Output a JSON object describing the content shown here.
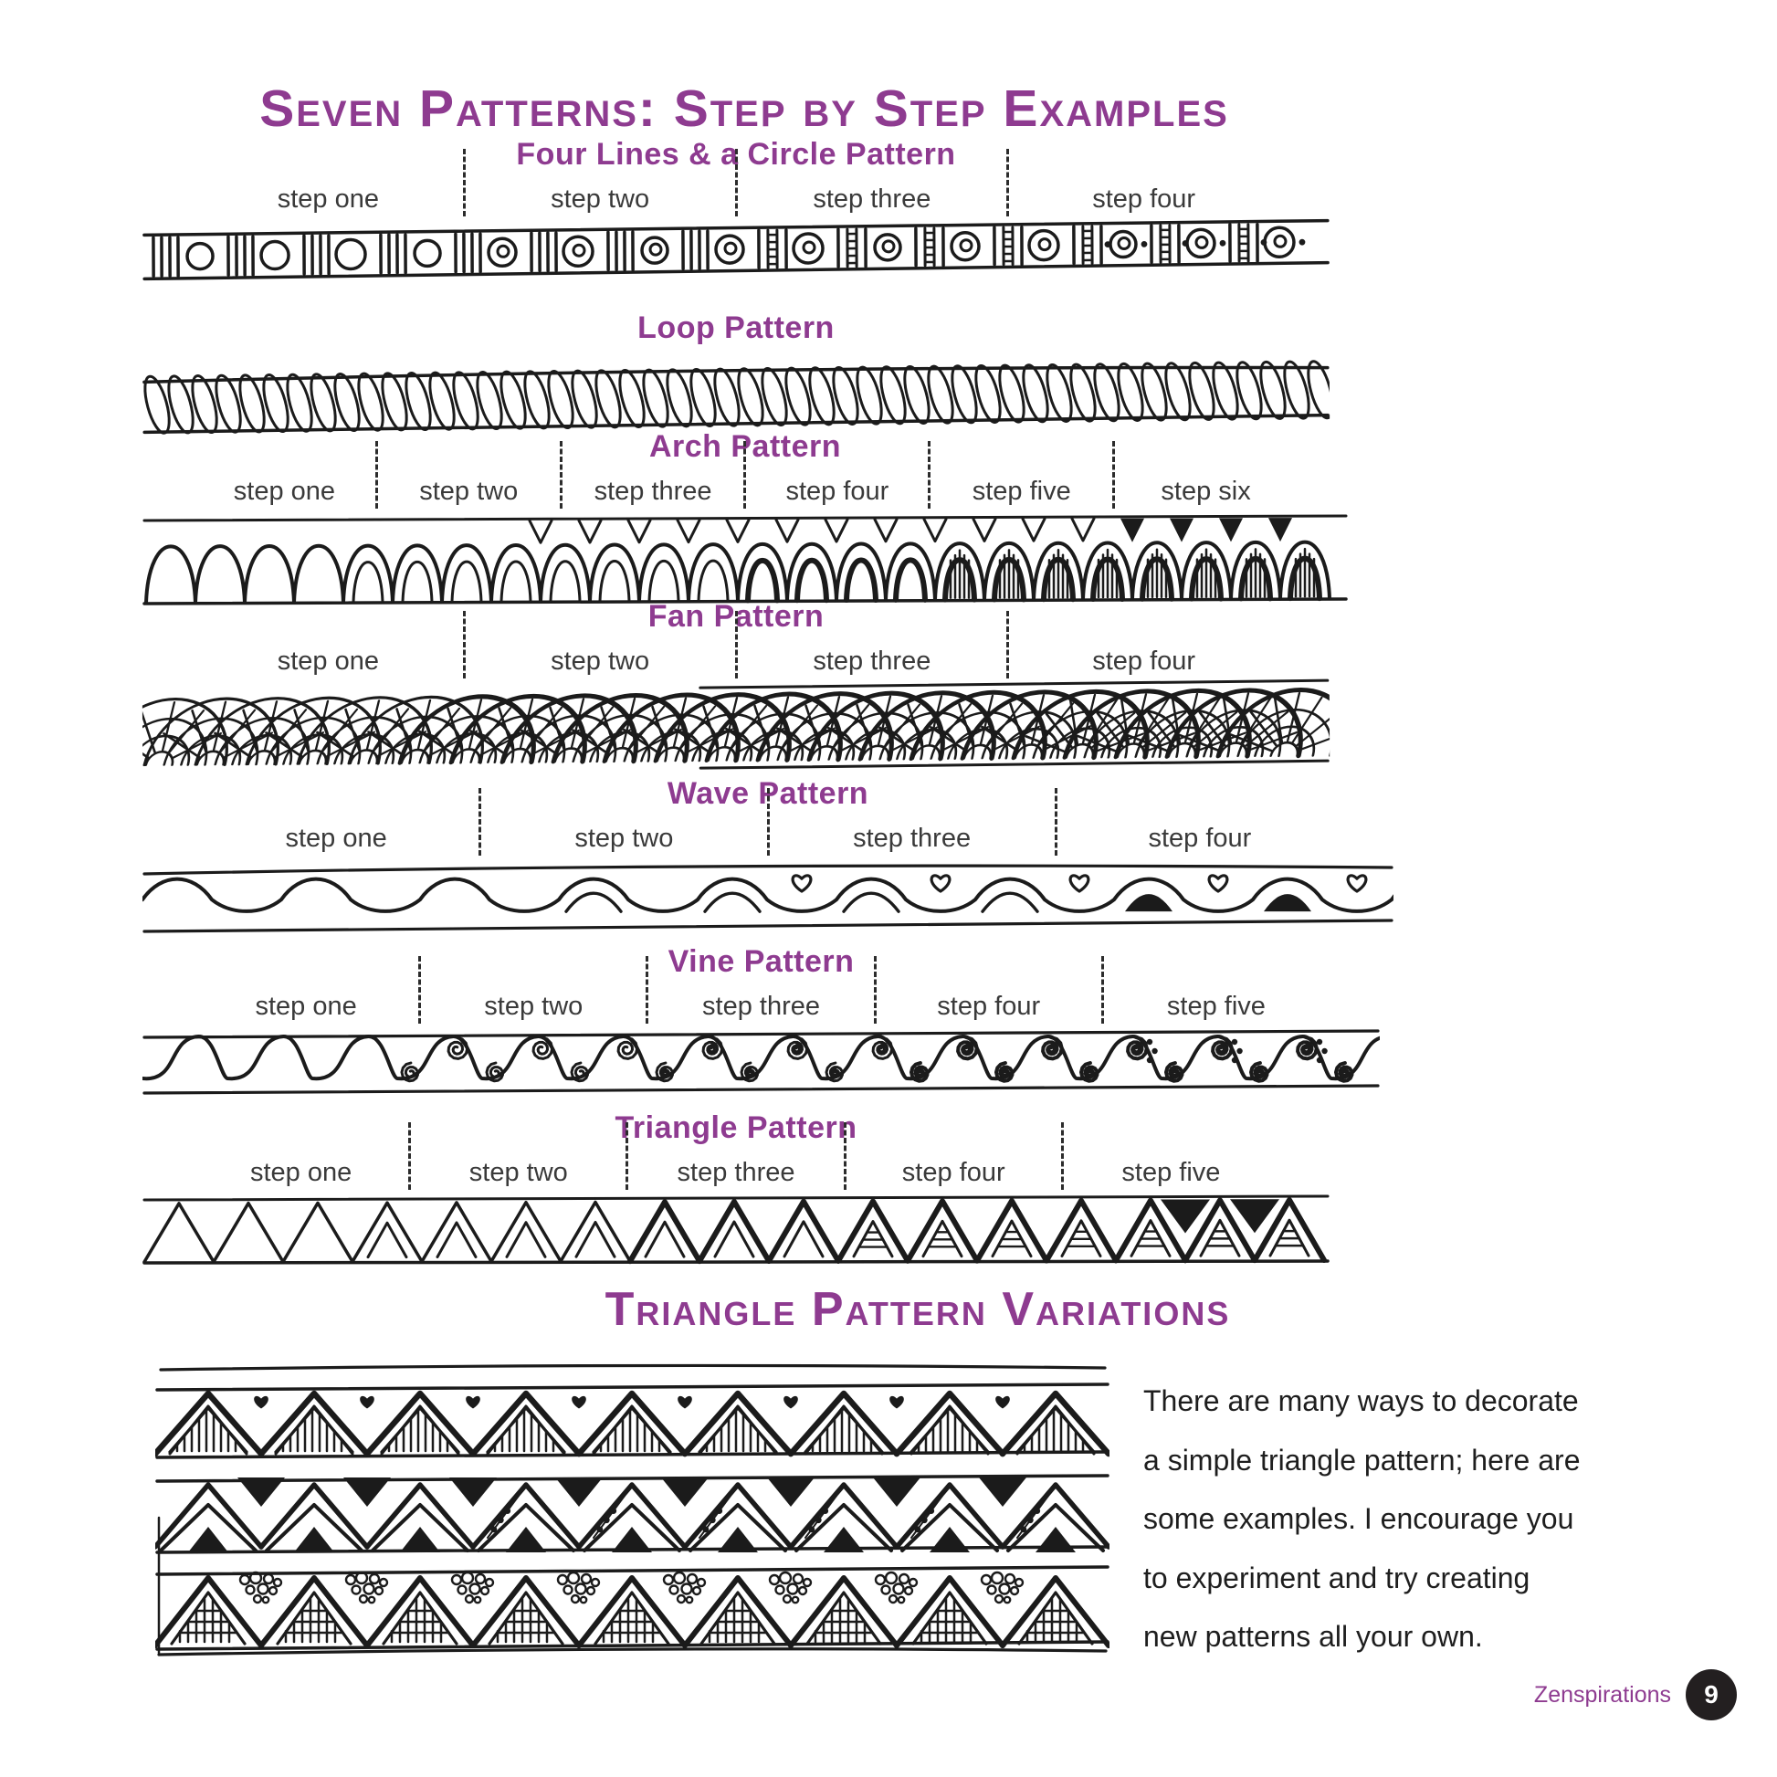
{
  "page": {
    "title": "Seven Patterns: Step by Step Examples",
    "variations_title": "Triangle Pattern Variations",
    "paragraph_lines": [
      "There are many ways to decorate",
      "a simple triangle pattern; here are",
      "some examples. I encourage you",
      "to experiment and try creating",
      "new patterns all your own."
    ],
    "footer": {
      "brand": "Zenspirations",
      "page_number": "9"
    }
  },
  "colors": {
    "accent": "#8e3b90",
    "ink": "#1b1b1b",
    "label": "#3a3a3a",
    "page_circle": "#231f20"
  },
  "patterns": [
    {
      "id": "four-lines-circle",
      "title": "Four Lines & a Circle Pattern",
      "steps": [
        "step one",
        "step two",
        "step three",
        "step four"
      ]
    },
    {
      "id": "loop",
      "title": "Loop Pattern",
      "steps": []
    },
    {
      "id": "arch",
      "title": "Arch Pattern",
      "steps": [
        "step one",
        "step two",
        "step three",
        "step four",
        "step five",
        "step six"
      ]
    },
    {
      "id": "fan",
      "title": "Fan Pattern",
      "steps": [
        "step one",
        "step two",
        "step three",
        "step four"
      ]
    },
    {
      "id": "wave",
      "title": "Wave Pattern",
      "steps": [
        "step one",
        "step two",
        "step three",
        "step four"
      ]
    },
    {
      "id": "vine",
      "title": "Vine Pattern",
      "steps": [
        "step one",
        "step two",
        "step three",
        "step four",
        "step five"
      ]
    },
    {
      "id": "triangle",
      "title": "Triangle Pattern",
      "steps": [
        "step one",
        "step two",
        "step three",
        "step four",
        "step five"
      ]
    }
  ],
  "variations": {
    "band_ids": [
      "zigzag-hearts-hatch",
      "double-zigzag-beads",
      "pebbles-and-ladder"
    ]
  }
}
